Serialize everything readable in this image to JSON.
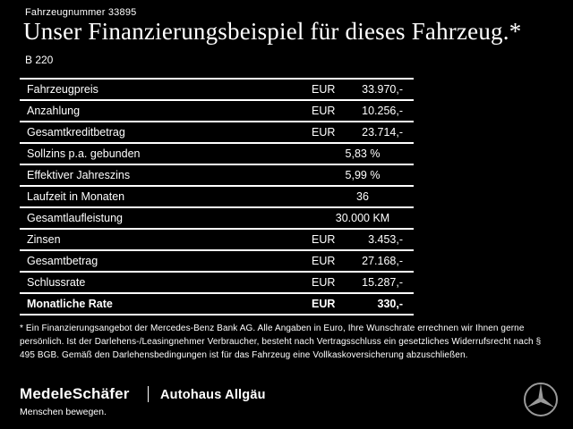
{
  "header": {
    "vehicle_number": "Fahrzeugnummer 33895",
    "title": "Unser Finanzierungsbeispiel für dieses Fahrzeug.*",
    "model": "B 220"
  },
  "table": {
    "rows": [
      {
        "label": "Fahrzeugpreis",
        "currency": "EUR",
        "value": "33.970,-",
        "bold": false
      },
      {
        "label": "Anzahlung",
        "currency": "EUR",
        "value": "10.256,-",
        "bold": false
      },
      {
        "label": "Gesamtkreditbetrag",
        "currency": "EUR",
        "value": "23.714,-",
        "bold": false
      },
      {
        "label": "Sollzins p.a. gebunden",
        "currency": "",
        "value": "5,83 %",
        "bold": false
      },
      {
        "label": "Effektiver Jahreszins",
        "currency": "",
        "value": "5,99 %",
        "bold": false
      },
      {
        "label": "Laufzeit in Monaten",
        "currency": "",
        "value": "36",
        "bold": false
      },
      {
        "label": "Gesamtlaufleistung",
        "currency": "",
        "value": "30.000 KM",
        "bold": false
      },
      {
        "label": "Zinsen",
        "currency": "EUR",
        "value": "3.453,-",
        "bold": false
      },
      {
        "label": "Gesamtbetrag",
        "currency": "EUR",
        "value": "27.168,-",
        "bold": false
      },
      {
        "label": "Schlussrate",
        "currency": "EUR",
        "value": "15.287,-",
        "bold": false
      },
      {
        "label": "Monatliche Rate",
        "currency": "EUR",
        "value": "330,-",
        "bold": true
      }
    ]
  },
  "footnote": "* Ein Finanzierungsangebot der Mercedes-Benz Bank AG. Alle Angaben in Euro, Ihre Wunschrate errechnen wir Ihnen gerne persönlich. Ist der Darlehens-/Leasingnehmer Verbraucher, besteht nach Vertragsschluss ein gesetzliches Widerrufsrecht nach § 495 BGB. Gemäß den Darlehensbedingungen ist für das Fahrzeug eine Vollkaskoversicherung abzuschließen.",
  "footer": {
    "dealer_primary": "MedeleSchäfer",
    "dealer_tagline": "Menschen bewegen.",
    "dealer_secondary": "Autohaus Allgäu",
    "brand_icon": "mercedes-star-icon"
  },
  "colors": {
    "background": "#000000",
    "text": "#ffffff",
    "line": "#ffffff",
    "star": "#9a9a9a"
  }
}
